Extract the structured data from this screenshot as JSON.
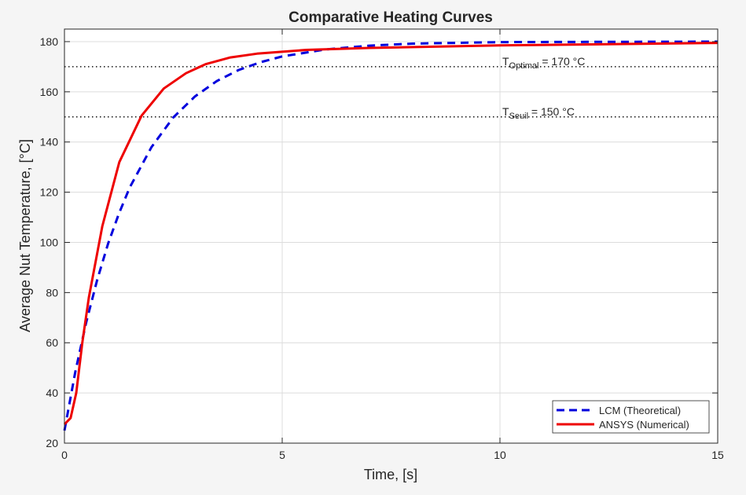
{
  "chart_data": {
    "type": "line",
    "title": "Comparative Heating Curves",
    "xlabel": "Time, [s]",
    "ylabel": "Average Nut Temperature, [°C]",
    "xlim": [
      0,
      15
    ],
    "ylim": [
      20,
      185
    ],
    "xticks": [
      0,
      5,
      10,
      15
    ],
    "yticks": [
      20,
      40,
      60,
      80,
      100,
      120,
      140,
      160,
      180
    ],
    "grid": true,
    "legend_position": "bottom-right",
    "series": [
      {
        "name": "LCM (Theoretical)",
        "color": "#0000dd",
        "style": "dashed",
        "x": [
          0,
          0.25,
          0.5,
          0.75,
          1,
          1.25,
          1.5,
          2,
          2.5,
          3,
          3.5,
          4,
          4.5,
          5,
          6,
          7,
          8,
          10,
          12,
          15
        ],
        "y": [
          25,
          48.4,
          68.2,
          85.0,
          99.4,
          111.5,
          121.9,
          138.0,
          149.8,
          158.2,
          164.3,
          168.7,
          171.8,
          174.1,
          176.9,
          178.4,
          179.2,
          179.8,
          179.9,
          180
        ]
      },
      {
        "name": "ANSYS (Numerical)",
        "color": "#ee0000",
        "style": "solid",
        "x": [
          0,
          0.14,
          0.27,
          0.41,
          0.56,
          0.87,
          1.26,
          1.77,
          2.28,
          2.79,
          3.24,
          3.81,
          4.42,
          5.56,
          7,
          10,
          15
        ],
        "y": [
          27.5,
          30,
          40,
          60,
          78,
          106.5,
          132,
          150.5,
          161.3,
          167.4,
          171,
          173.7,
          175.2,
          176.7,
          177.5,
          178.5,
          179.5
        ]
      }
    ],
    "reference_lines": [
      {
        "y": 170,
        "label_main": "T",
        "label_sub": "Optimal",
        "label_rest": " =  170  °C"
      },
      {
        "y": 150,
        "label_main": "T",
        "label_sub": "Seuil",
        "label_rest": " =  150  °C"
      }
    ]
  }
}
